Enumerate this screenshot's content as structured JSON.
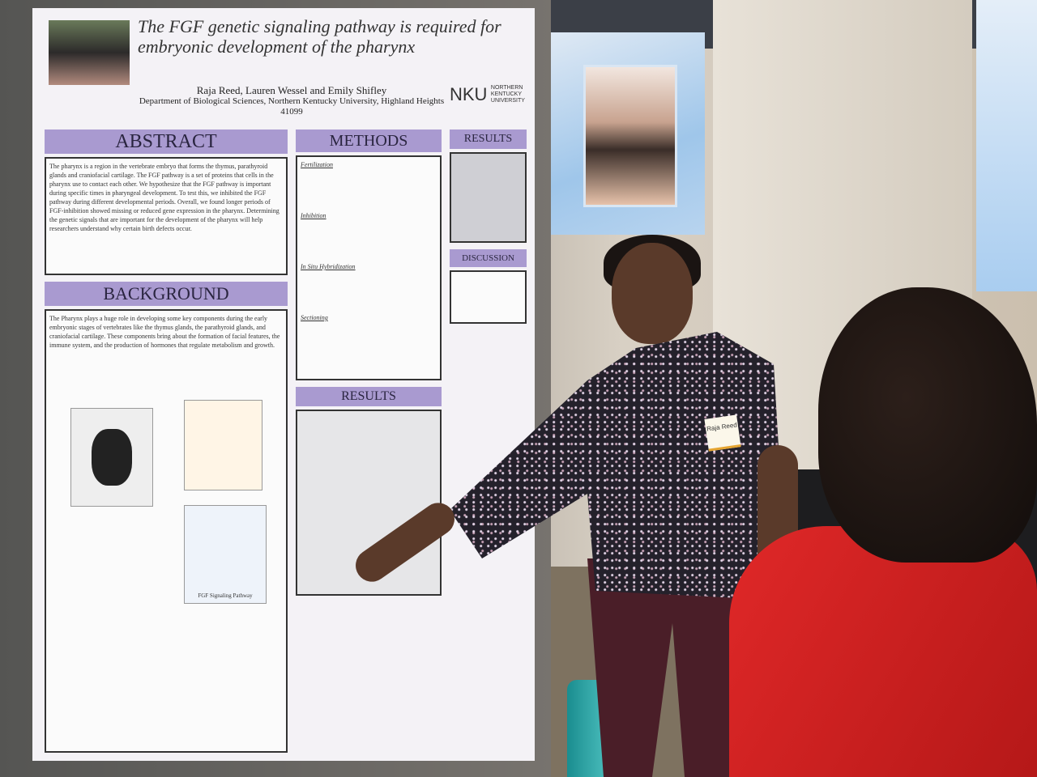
{
  "poster": {
    "title": "The FGF genetic signaling pathway is required for embryonic development of the pharynx",
    "authors": "Raja Reed, Lauren Wessel and Emily Shifley",
    "affiliation": "Department of Biological Sciences, Northern Kentucky University, Highland Heights 41099",
    "logo": "NKU",
    "logo_text": "NORTHERN KENTUCKY UNIVERSITY",
    "sections": {
      "abstract": "ABSTRACT",
      "background": "BACKGROUND",
      "methods": "METHODS",
      "results_top": "RESULTS",
      "results_bottom": "RESULTS",
      "discussion": "DISCUSSION"
    },
    "abstract_text": "The pharynx is a region in the vertebrate embryo that forms the thymus, parathyroid glands and craniofacial cartilage. The FGF pathway is a set of proteins that cells in the pharynx use to contact each other. We hypothesize that the FGF pathway is important during specific times in pharyngeal development. To test this, we inhibited the FGF pathway during different developmental periods. Overall, we found longer periods of FGF-inhibition showed missing or reduced gene expression in the pharynx. Determining the genetic signals that are important for the development of the pharynx will help researchers understand why certain birth defects occur.",
    "background_text": "The Pharynx plays a huge role in developing some key components during the early embryonic stages of vertebrates like the thymus glands, the parathyroid glands, and craniofacial cartilage. These components bring about the formation of facial features, the immune system, and the production of hormones that regulate metabolism and growth.",
    "methods_subs": [
      "Fertilization",
      "Inhibition",
      "In Situ Hybridization",
      "Sectioning"
    ],
    "figure_caption": "FGF Signaling Pathway"
  },
  "name_tag": "Raja Reed",
  "colors": {
    "poster_band": "#a99ad0",
    "visitor_shirt": "#d42222",
    "pants": "#4a1e28"
  }
}
